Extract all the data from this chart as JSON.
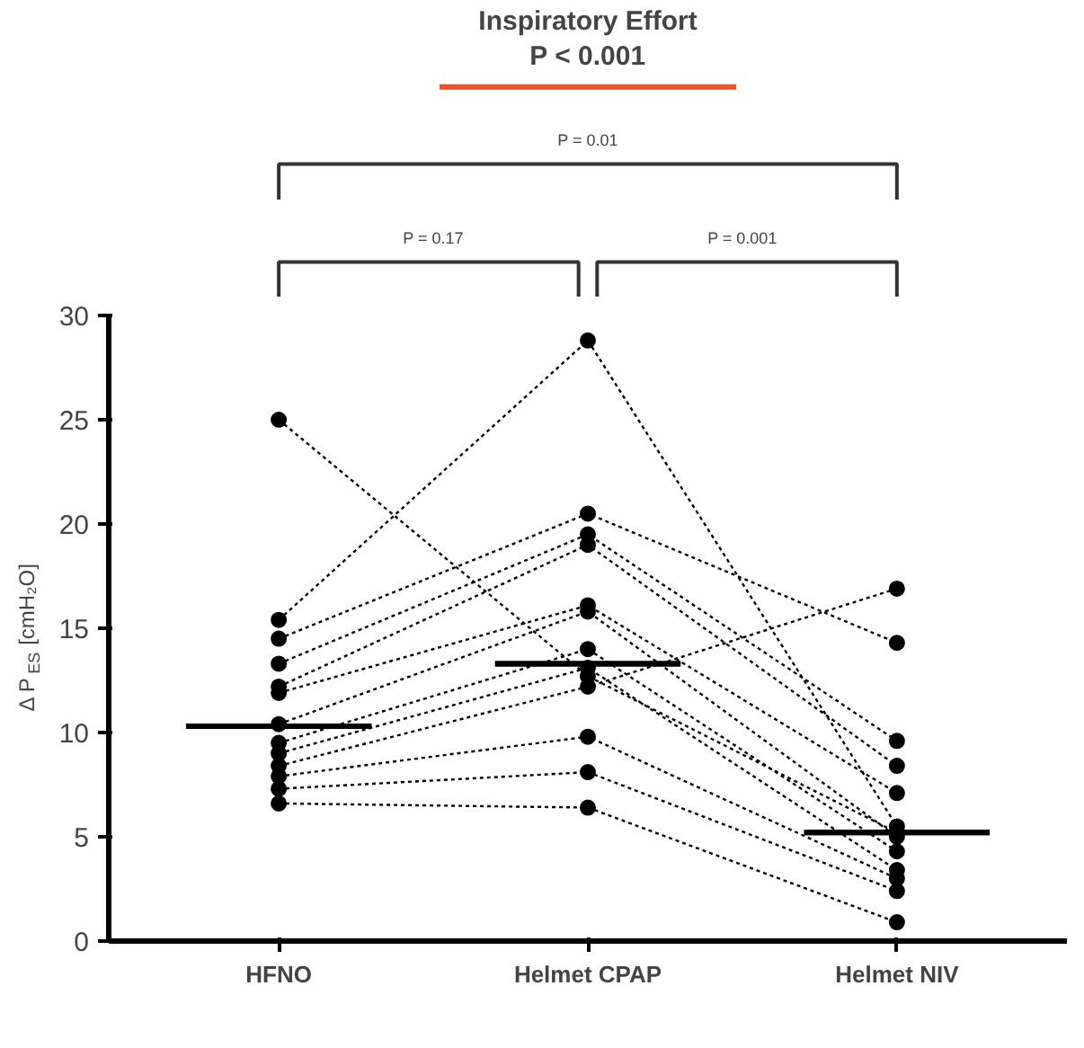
{
  "chart_data": {
    "type": "line",
    "title": "Inspiratory Effort",
    "subtitle": "P < 0.001",
    "ylabel": "Δ P$_{ES}$ [cmH₂O]",
    "categories": [
      "HFNO",
      "Helmet CPAP",
      "Helmet NIV"
    ],
    "ylim": [
      0,
      30
    ],
    "yticks": [
      0,
      5,
      10,
      15,
      20,
      25,
      30
    ],
    "grid": false,
    "marker": "circle",
    "line_style": "dotted",
    "annotations": [
      "P = 0.01",
      "P = 0.17",
      "P = 0.001"
    ],
    "series": [
      {
        "color": "#000000",
        "values": [
          25.0,
          12.7,
          5.2
        ]
      },
      {
        "color": "#000000",
        "values": [
          15.4,
          28.8,
          5.5
        ]
      },
      {
        "color": "#000000",
        "values": [
          14.5,
          20.5,
          14.3
        ]
      },
      {
        "color": "#000000",
        "values": [
          13.3,
          19.5,
          9.6
        ]
      },
      {
        "color": "#000000",
        "values": [
          12.2,
          19.0,
          8.4
        ]
      },
      {
        "color": "#000000",
        "values": [
          11.9,
          16.1,
          7.1
        ]
      },
      {
        "color": "#000000",
        "values": [
          10.4,
          15.8,
          5.0
        ]
      },
      {
        "color": "#000000",
        "values": [
          9.5,
          14.0,
          4.3
        ]
      },
      {
        "color": "#000000",
        "values": [
          9.0,
          13.1,
          3.4
        ]
      },
      {
        "color": "#000000",
        "values": [
          8.4,
          12.2,
          16.9
        ]
      },
      {
        "color": "#000000",
        "values": [
          7.9,
          9.8,
          3.0
        ]
      },
      {
        "color": "#000000",
        "values": [
          7.3,
          8.1,
          2.4
        ]
      },
      {
        "color": "#000000",
        "values": [
          6.6,
          6.4,
          0.9
        ]
      },
      {
        "type": "box",
        "color": "#000000",
        "boxes": [
          {
            "low": 10.3,
            "q1": 10.3,
            "median": 10.3,
            "q3": 10.3,
            "high": 10.3
          },
          {
            "low": 13.3,
            "q1": 13.3,
            "median": 13.3,
            "q3": 13.3,
            "high": 13.3
          },
          {
            "low": 5.2,
            "q1": 5.2,
            "median": 5.2,
            "q3": 5.2,
            "high": 5.2
          }
        ]
      }
    ]
  }
}
